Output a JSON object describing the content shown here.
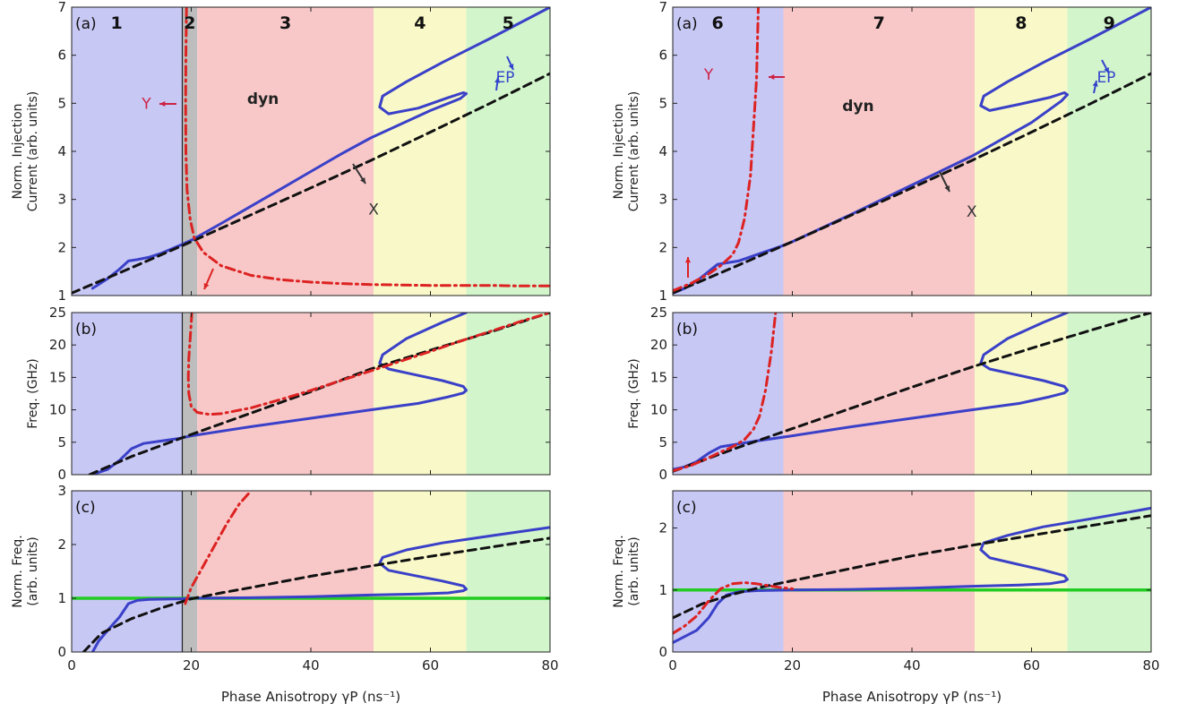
{
  "figure": {
    "xlabel": "Phase Anisotropy γP (ns⁻¹)"
  },
  "chart_data": [
    {
      "type": "line",
      "panel_label": "(a)",
      "ylabel": [
        "Norm. Injection",
        "Current (arb. units)"
      ],
      "xlim": [
        0,
        80
      ],
      "ylim": [
        1,
        7
      ],
      "xticks": [
        0,
        20,
        40,
        60,
        80
      ],
      "yticks": [
        1,
        2,
        3,
        4,
        5,
        6,
        7
      ],
      "regions": [
        {
          "label": "1",
          "x": [
            0,
            18.5
          ],
          "color": "#c8c8f5"
        },
        {
          "label": "2",
          "x": [
            18.5,
            21
          ],
          "color": "#bdbdbd"
        },
        {
          "label": "3",
          "x": [
            21,
            50.5
          ],
          "color": "#f8c8c8"
        },
        {
          "label": "4",
          "x": [
            50.5,
            66
          ],
          "color": "#f8f8c8"
        },
        {
          "label": "5",
          "x": [
            66,
            80
          ],
          "color": "#d2f5cc"
        }
      ],
      "vline": 18.5,
      "annotations": [
        {
          "text": "dyn",
          "x": 32,
          "y": 5.1,
          "color": "#222222"
        },
        {
          "text": "Y",
          "x": 12.5,
          "y": 5.0,
          "color": "#cc2244"
        },
        {
          "text": "X",
          "x": 50.5,
          "y": 2.8,
          "color": "#333333"
        },
        {
          "text": "EP",
          "x": 72.5,
          "y": 5.55,
          "color": "#3344cc"
        }
      ],
      "series": [
        {
          "style": "solid-blue",
          "x": [
            3.5,
            6,
            8,
            9.5,
            11,
            13,
            15,
            18,
            20,
            25,
            30,
            35,
            40,
            45,
            50,
            60,
            65,
            66,
            65.5,
            63,
            58,
            53,
            51.5,
            52,
            56,
            62,
            70,
            80
          ],
          "y": [
            1.15,
            1.35,
            1.55,
            1.72,
            1.75,
            1.8,
            1.88,
            2.04,
            2.15,
            2.5,
            2.86,
            3.22,
            3.58,
            3.94,
            4.28,
            4.85,
            5.1,
            5.2,
            5.22,
            5.12,
            4.9,
            4.78,
            4.92,
            5.15,
            5.45,
            5.85,
            6.35,
            7.0
          ]
        },
        {
          "style": "dashed-black",
          "x": [
            0,
            10,
            20,
            30,
            40,
            50,
            60,
            70,
            80
          ],
          "y": [
            1.05,
            1.58,
            2.12,
            2.68,
            3.24,
            3.81,
            4.4,
            5.0,
            5.62
          ]
        },
        {
          "style": "dashdot-red",
          "x": [
            19.2,
            19.1,
            19.05,
            19.1,
            19.3,
            19.8,
            20.5,
            22,
            25,
            30,
            35,
            40,
            45,
            50,
            55,
            60,
            65,
            70,
            75,
            80
          ],
          "y": [
            7.0,
            6.0,
            5.0,
            4.0,
            3.2,
            2.6,
            2.2,
            1.9,
            1.62,
            1.42,
            1.33,
            1.28,
            1.25,
            1.23,
            1.22,
            1.21,
            1.21,
            1.21,
            1.2,
            1.2
          ]
        }
      ]
    },
    {
      "type": "line",
      "panel_label": "(b)",
      "ylabel": [
        "Freq. (GHz)"
      ],
      "xlim": [
        0,
        80
      ],
      "ylim": [
        0,
        25
      ],
      "xticks": [
        0,
        20,
        40,
        60,
        80
      ],
      "yticks": [
        0,
        5,
        10,
        15,
        20,
        25
      ],
      "regions": [
        {
          "label": "1",
          "x": [
            0,
            18.5
          ],
          "color": "#c8c8f5"
        },
        {
          "label": "2",
          "x": [
            18.5,
            21
          ],
          "color": "#bdbdbd"
        },
        {
          "label": "3",
          "x": [
            21,
            50.5
          ],
          "color": "#f8c8c8"
        },
        {
          "label": "4",
          "x": [
            50.5,
            66
          ],
          "color": "#f8f8c8"
        },
        {
          "label": "5",
          "x": [
            66,
            80
          ],
          "color": "#d2f5cc"
        }
      ],
      "vline": 18.5,
      "series": [
        {
          "style": "solid-blue",
          "x": [
            4,
            6,
            8,
            10,
            12,
            15,
            18,
            20,
            30,
            40,
            50,
            58,
            63,
            65.5,
            66,
            65.5,
            62,
            57,
            53,
            51.5,
            52,
            56,
            62,
            66
          ],
          "y": [
            0.2,
            0.8,
            2.2,
            4.0,
            4.8,
            5.2,
            5.6,
            6.0,
            7.4,
            8.7,
            10.0,
            11.0,
            12.0,
            12.6,
            13.0,
            13.6,
            14.5,
            15.5,
            16.3,
            17.2,
            18.5,
            21.0,
            23.5,
            25.0
          ]
        },
        {
          "style": "dashed-black",
          "x": [
            3,
            10,
            20,
            30,
            40,
            50,
            60,
            70,
            80
          ],
          "y": [
            0.0,
            2.8,
            6.2,
            9.5,
            12.8,
            16.3,
            19.2,
            22.0,
            25.0
          ]
        },
        {
          "style": "dashdot-red",
          "x": [
            20.1,
            19.9,
            19.6,
            19.5,
            19.6,
            20,
            21,
            23,
            25,
            30,
            35,
            40,
            45,
            50,
            55,
            60,
            65,
            70,
            75,
            80
          ],
          "y": [
            25.0,
            22.0,
            18.0,
            15.0,
            12.5,
            10.5,
            9.6,
            9.3,
            9.4,
            10.3,
            11.6,
            13.0,
            14.5,
            16.0,
            17.5,
            19.0,
            20.6,
            22.1,
            23.6,
            25.0
          ]
        }
      ]
    },
    {
      "type": "line",
      "panel_label": "(c)",
      "ylabel": [
        "Norm. Freq.",
        "(arb. units)"
      ],
      "xlim": [
        0,
        80
      ],
      "ylim": [
        0,
        3
      ],
      "xticks": [
        0,
        20,
        40,
        60,
        80
      ],
      "yticks": [
        0,
        1,
        2,
        3
      ],
      "regions": [
        {
          "label": "1",
          "x": [
            0,
            18.5
          ],
          "color": "#c8c8f5"
        },
        {
          "label": "2",
          "x": [
            18.5,
            21
          ],
          "color": "#bdbdbd"
        },
        {
          "label": "3",
          "x": [
            21,
            50.5
          ],
          "color": "#f8c8c8"
        },
        {
          "label": "4",
          "x": [
            50.5,
            66
          ],
          "color": "#f8f8c8"
        },
        {
          "label": "5",
          "x": [
            66,
            80
          ],
          "color": "#d2f5cc"
        }
      ],
      "vline": 18.5,
      "series": [
        {
          "style": "solid-green",
          "x": [
            0,
            80
          ],
          "y": [
            1.0,
            1.0
          ]
        },
        {
          "style": "solid-blue",
          "x": [
            3.5,
            4.5,
            6,
            8,
            9.5,
            11,
            13,
            18,
            20,
            30,
            40,
            50,
            58,
            63,
            65.5,
            66,
            65.5,
            62,
            57,
            53,
            51.5,
            52,
            56,
            62,
            70,
            80
          ],
          "y": [
            0.0,
            0.2,
            0.4,
            0.65,
            0.9,
            0.96,
            0.98,
            0.99,
            1.0,
            1.01,
            1.03,
            1.06,
            1.08,
            1.1,
            1.14,
            1.17,
            1.23,
            1.32,
            1.43,
            1.52,
            1.65,
            1.76,
            1.9,
            2.03,
            2.16,
            2.32
          ]
        },
        {
          "style": "dashed-black",
          "x": [
            2,
            5,
            10,
            15,
            20,
            25,
            30,
            40,
            50,
            60,
            70,
            80
          ],
          "y": [
            0.0,
            0.35,
            0.62,
            0.82,
            0.99,
            1.1,
            1.2,
            1.41,
            1.6,
            1.78,
            1.95,
            2.12
          ]
        },
        {
          "style": "dashdot-red",
          "x": [
            19,
            20,
            22,
            24,
            26,
            28,
            30
          ],
          "y": [
            0.9,
            1.2,
            1.6,
            2.0,
            2.4,
            2.75,
            3.0
          ]
        }
      ]
    },
    {
      "type": "line",
      "panel_label": "(a)",
      "ylabel": [
        "Norm. Injection",
        "Current (arb. units)"
      ],
      "xlim": [
        0,
        80
      ],
      "ylim": [
        1,
        7
      ],
      "xticks": [
        0,
        20,
        40,
        60,
        80
      ],
      "yticks": [
        1,
        2,
        3,
        4,
        5,
        6,
        7
      ],
      "regions": [
        {
          "label": "6",
          "x": [
            0,
            18.5
          ],
          "color": "#c8c8f5"
        },
        {
          "label": "7",
          "x": [
            18.5,
            50.5
          ],
          "color": "#f8c8c8"
        },
        {
          "label": "8",
          "x": [
            50.5,
            66
          ],
          "color": "#f8f8c8"
        },
        {
          "label": "9",
          "x": [
            66,
            80
          ],
          "color": "#d2f5cc"
        }
      ],
      "annotations": [
        {
          "text": "dyn",
          "x": 31,
          "y": 4.95,
          "color": "#222222"
        },
        {
          "text": "Y",
          "x": 6,
          "y": 5.6,
          "color": "#cc2244"
        },
        {
          "text": "X",
          "x": 50,
          "y": 2.75,
          "color": "#333333"
        },
        {
          "text": "EP",
          "x": 72.5,
          "y": 5.55,
          "color": "#3344cc"
        }
      ],
      "series": [
        {
          "style": "solid-blue",
          "x": [
            0,
            2,
            4,
            6,
            7.5,
            9,
            11,
            14,
            18,
            20,
            30,
            40,
            50,
            60,
            65,
            66,
            65.5,
            63,
            58,
            53,
            51.5,
            52,
            56,
            62,
            70,
            80
          ],
          "y": [
            1.05,
            1.15,
            1.3,
            1.5,
            1.65,
            1.68,
            1.72,
            1.85,
            2.02,
            2.12,
            2.7,
            3.3,
            3.9,
            4.6,
            5.05,
            5.18,
            5.22,
            5.12,
            4.98,
            4.85,
            4.95,
            5.15,
            5.45,
            5.85,
            6.35,
            7.0
          ]
        },
        {
          "style": "dashed-black",
          "x": [
            0,
            10,
            20,
            30,
            40,
            50,
            60,
            70,
            80
          ],
          "y": [
            1.05,
            1.58,
            2.12,
            2.68,
            3.24,
            3.81,
            4.4,
            5.0,
            5.62
          ]
        },
        {
          "style": "dashdot-red",
          "x": [
            0,
            3,
            6,
            8,
            10,
            11,
            12,
            13,
            14,
            14.3
          ],
          "y": [
            1.1,
            1.25,
            1.45,
            1.62,
            1.85,
            2.1,
            2.6,
            3.5,
            5.5,
            7.0
          ]
        }
      ]
    },
    {
      "type": "line",
      "panel_label": "(b)",
      "ylabel": [
        "Freq. (GHz)"
      ],
      "xlim": [
        0,
        80
      ],
      "ylim": [
        0,
        25
      ],
      "xticks": [
        0,
        20,
        40,
        60,
        80
      ],
      "yticks": [
        0,
        5,
        10,
        15,
        20,
        25
      ],
      "regions": [
        {
          "label": "6",
          "x": [
            0,
            18.5
          ],
          "color": "#c8c8f5"
        },
        {
          "label": "7",
          "x": [
            18.5,
            50.5
          ],
          "color": "#f8c8c8"
        },
        {
          "label": "8",
          "x": [
            50.5,
            66
          ],
          "color": "#f8f8c8"
        },
        {
          "label": "9",
          "x": [
            66,
            80
          ],
          "color": "#d2f5cc"
        }
      ],
      "series": [
        {
          "style": "solid-blue",
          "x": [
            0,
            2,
            4,
            6,
            8,
            10,
            14,
            20,
            30,
            40,
            50,
            58,
            63,
            65.5,
            66,
            65.5,
            62,
            57,
            53,
            51.5,
            52,
            56,
            62,
            66
          ],
          "y": [
            0.8,
            1.2,
            2.0,
            3.3,
            4.3,
            4.6,
            5.2,
            6.0,
            7.4,
            8.7,
            10.0,
            11.0,
            12.0,
            12.6,
            13.0,
            13.6,
            14.5,
            15.5,
            16.3,
            17.2,
            18.5,
            21.0,
            23.5,
            25.0
          ]
        },
        {
          "style": "dashed-black",
          "x": [
            0,
            10,
            20,
            30,
            40,
            50,
            60,
            70,
            80
          ],
          "y": [
            0.5,
            3.9,
            7.1,
            10.3,
            13.5,
            16.6,
            19.5,
            22.3,
            25.0
          ]
        },
        {
          "style": "dashdot-red",
          "x": [
            0,
            3,
            6,
            8,
            10,
            12,
            13.5,
            14.5,
            15.5,
            16.5,
            17.2
          ],
          "y": [
            0.6,
            1.4,
            2.6,
            3.5,
            4.3,
            5.4,
            7.0,
            9.0,
            13.0,
            19.0,
            25.0
          ]
        }
      ]
    },
    {
      "type": "line",
      "panel_label": "(c)",
      "ylabel": [
        "Norm. Freq.",
        "(arb. units)"
      ],
      "xlim": [
        0,
        80
      ],
      "ylim": [
        0,
        2.6
      ],
      "xticks": [
        0,
        20,
        40,
        60,
        80
      ],
      "yticks": [
        0,
        1,
        2
      ],
      "regions": [
        {
          "label": "6",
          "x": [
            0,
            18.5
          ],
          "color": "#c8c8f5"
        },
        {
          "label": "7",
          "x": [
            18.5,
            50.5
          ],
          "color": "#f8c8c8"
        },
        {
          "label": "8",
          "x": [
            50.5,
            66
          ],
          "color": "#f8f8c8"
        },
        {
          "label": "9",
          "x": [
            66,
            80
          ],
          "color": "#d2f5cc"
        }
      ],
      "series": [
        {
          "style": "solid-green",
          "x": [
            0,
            80
          ],
          "y": [
            1.0,
            1.0
          ]
        },
        {
          "style": "solid-blue",
          "x": [
            0,
            2,
            4,
            6,
            7.5,
            9,
            11,
            14,
            20,
            30,
            40,
            50,
            58,
            63,
            65.5,
            66,
            65.5,
            62,
            57,
            53,
            51.5,
            52,
            56,
            62,
            70,
            80
          ],
          "y": [
            0.15,
            0.25,
            0.35,
            0.55,
            0.78,
            0.92,
            0.97,
            0.99,
            1.0,
            1.01,
            1.03,
            1.06,
            1.08,
            1.1,
            1.14,
            1.17,
            1.23,
            1.32,
            1.43,
            1.52,
            1.65,
            1.76,
            1.88,
            2.02,
            2.15,
            2.32
          ]
        },
        {
          "style": "dashed-black",
          "x": [
            0,
            5,
            10,
            15,
            20,
            30,
            40,
            50,
            60,
            70,
            80
          ],
          "y": [
            0.55,
            0.78,
            0.93,
            1.05,
            1.15,
            1.35,
            1.55,
            1.72,
            1.88,
            2.04,
            2.2
          ]
        },
        {
          "style": "dashdot-red",
          "x": [
            0,
            2,
            4,
            6,
            8,
            10,
            12,
            14,
            16,
            18,
            20
          ],
          "y": [
            0.3,
            0.42,
            0.58,
            0.82,
            1.02,
            1.1,
            1.12,
            1.1,
            1.07,
            1.04,
            1.02
          ]
        }
      ]
    }
  ]
}
